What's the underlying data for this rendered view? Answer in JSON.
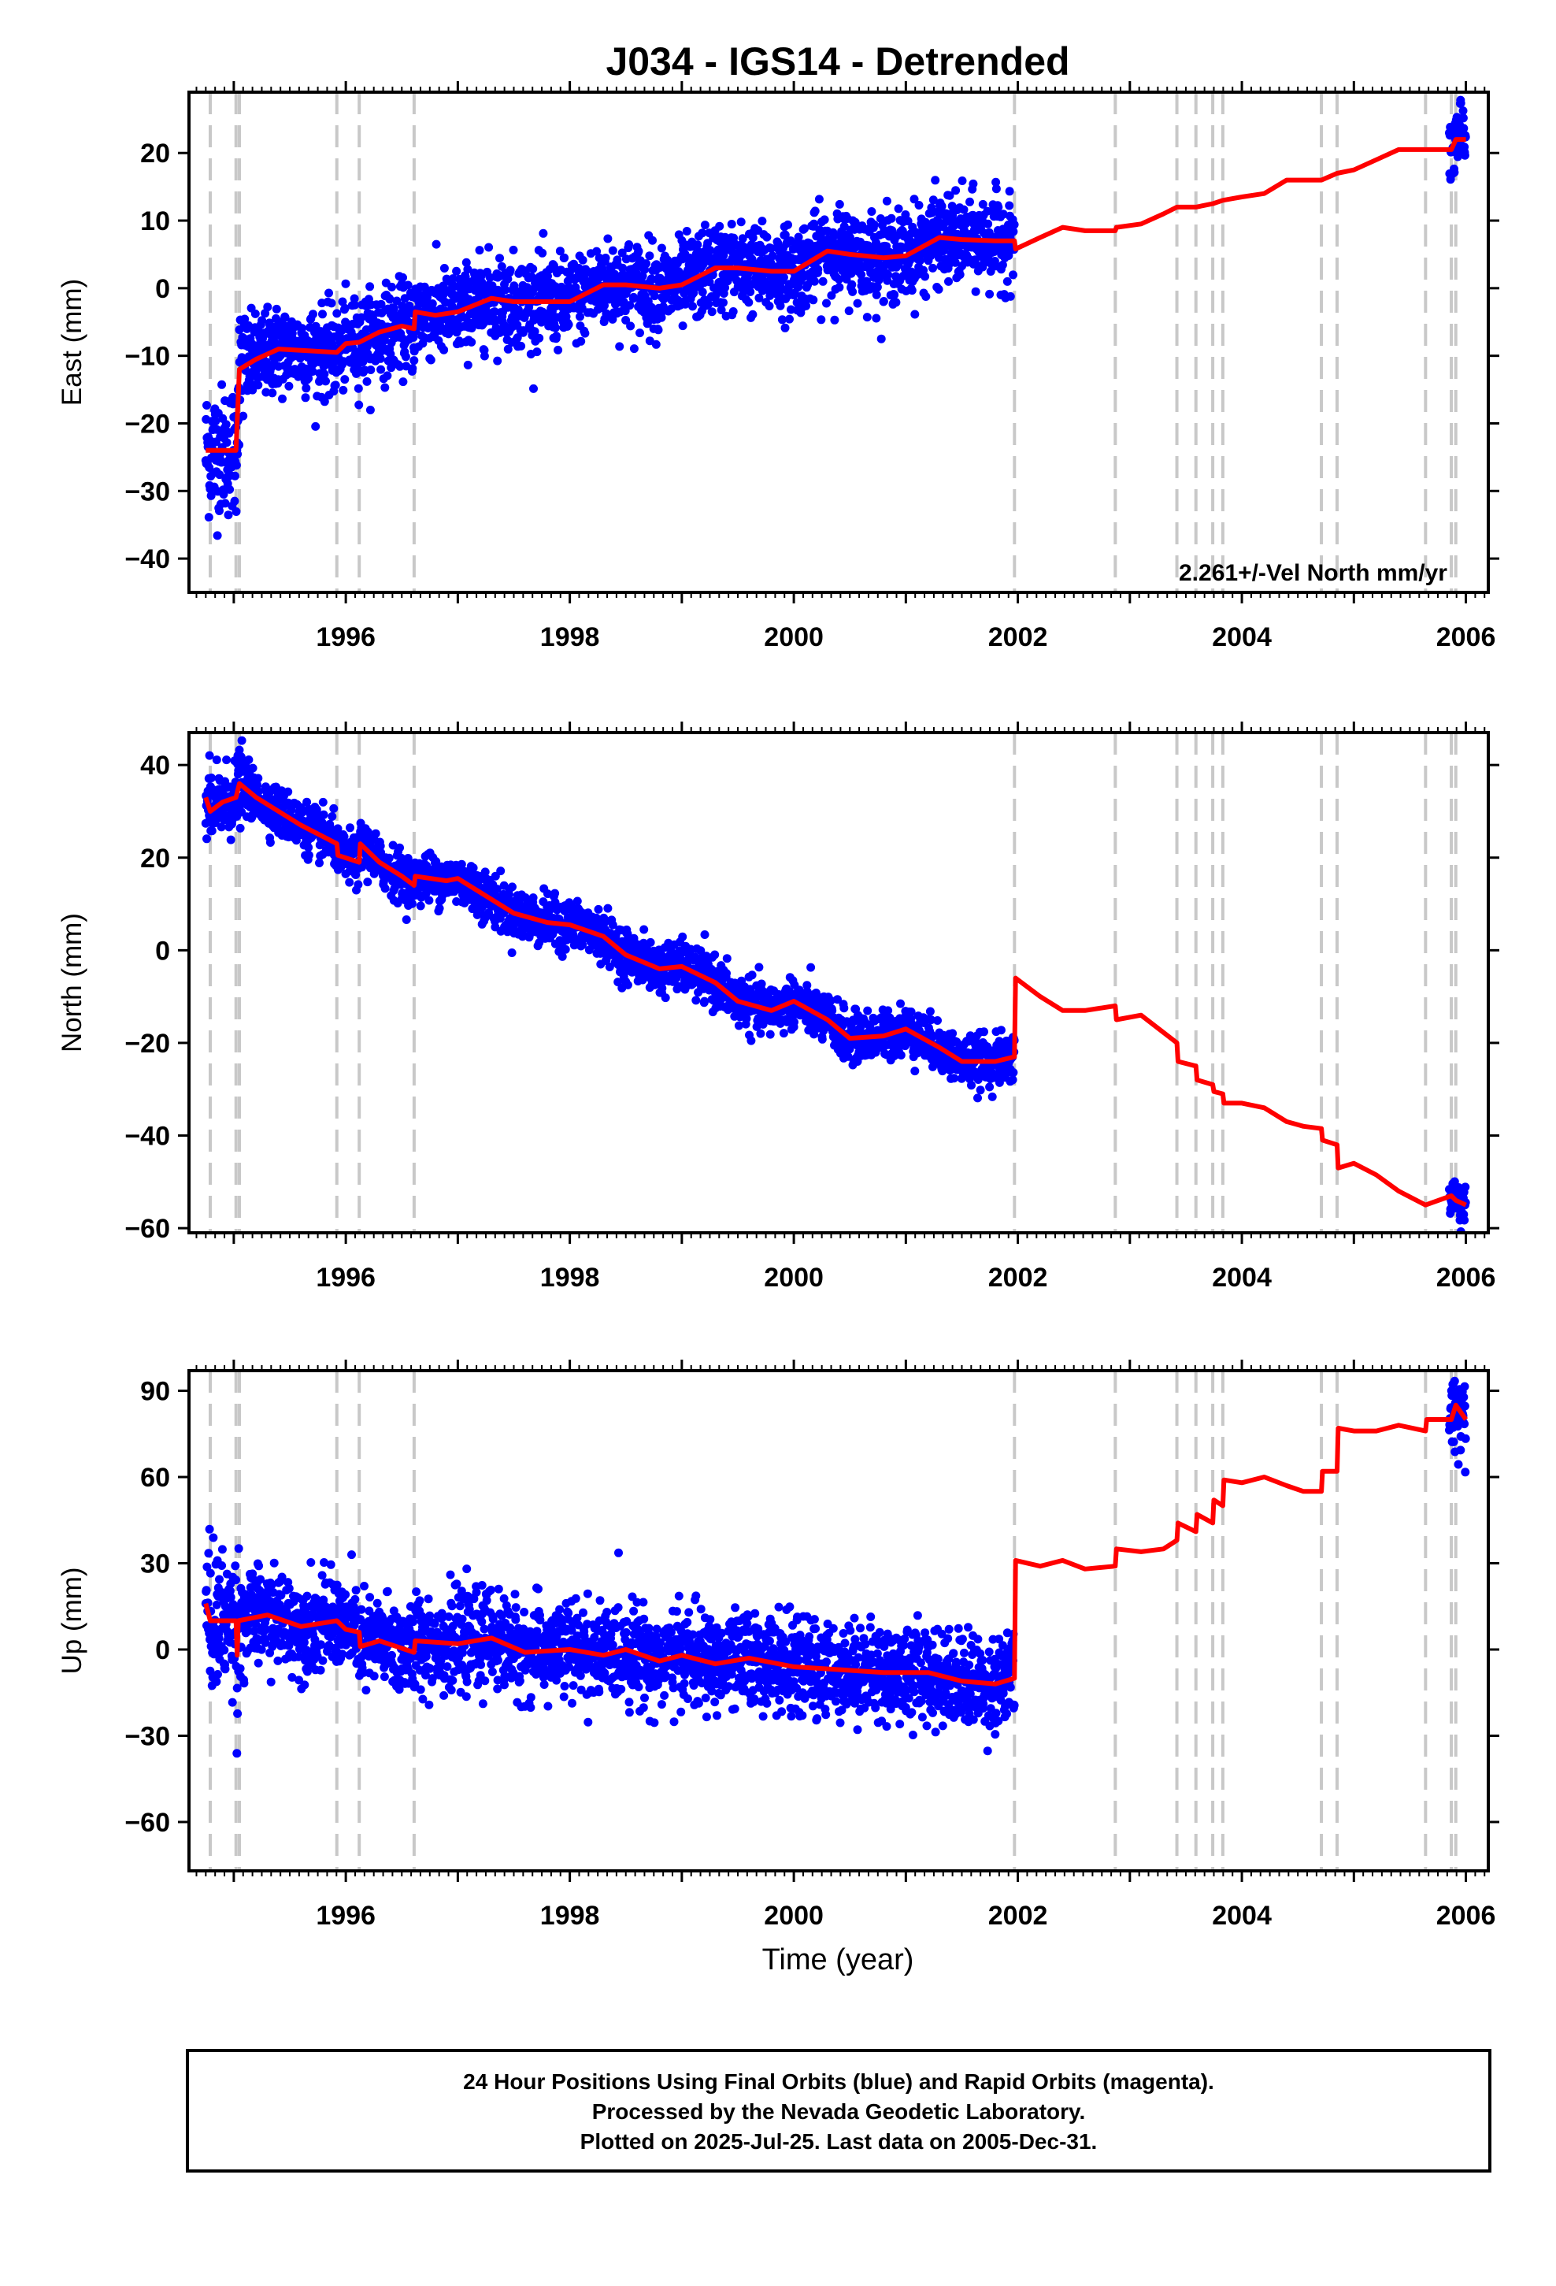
{
  "chart_data": {
    "title": "J034 - IGS14 - Detrended",
    "xlabel": "Time (year)",
    "xlim": [
      1994.6,
      2006.2
    ],
    "x_ticks": [
      1996,
      1998,
      2000,
      2002,
      2004,
      2006
    ],
    "x_tick_labels": [
      "1996",
      "1998",
      "2000",
      "2002",
      "2004",
      "2006"
    ],
    "data_range": [
      1994.75,
      2006.0
    ],
    "colors": {
      "positions": "#0000ff",
      "model": "#ff0000",
      "breaks": "#c8c8c8"
    },
    "breaks": [
      1994.79,
      1995.02,
      1995.05,
      1995.92,
      1996.12,
      1996.61,
      2001.97,
      2002.87,
      2003.42,
      2003.59,
      2003.74,
      2003.83,
      2004.71,
      2004.85,
      2005.64,
      2005.87,
      2005.91
    ],
    "panels": [
      {
        "type": "scatter",
        "component": "east",
        "ylabel": "East (mm)",
        "ylim": [
          -45,
          29
        ],
        "y_ticks": [
          20,
          10,
          0,
          -10,
          -20,
          -30,
          -40
        ],
        "y_tick_labels": [
          "20",
          "10",
          "0",
          "−10",
          "−20",
          "−30",
          "−40"
        ],
        "annotation": "2.261+/-Vel North mm/yr",
        "scatter_sd": 3.2,
        "model": [
          [
            1994.75,
            -24
          ],
          [
            1994.79,
            -24
          ],
          [
            1994.8,
            -24
          ],
          [
            1995.02,
            -24
          ],
          [
            1995.05,
            -12
          ],
          [
            1995.2,
            -10.5
          ],
          [
            1995.4,
            -9
          ],
          [
            1995.6,
            -9.2
          ],
          [
            1995.92,
            -9.5
          ],
          [
            1996.0,
            -8.2
          ],
          [
            1996.12,
            -8
          ],
          [
            1996.3,
            -6.5
          ],
          [
            1996.5,
            -5.6
          ],
          [
            1996.61,
            -6
          ],
          [
            1996.62,
            -3.5
          ],
          [
            1996.8,
            -4
          ],
          [
            1997.0,
            -3.5
          ],
          [
            1997.3,
            -1.5
          ],
          [
            1997.5,
            -2
          ],
          [
            1997.8,
            -2
          ],
          [
            1998.0,
            -2
          ],
          [
            1998.3,
            0.5
          ],
          [
            1998.5,
            0.5
          ],
          [
            1998.8,
            0
          ],
          [
            1999.0,
            0.5
          ],
          [
            1999.3,
            3
          ],
          [
            1999.5,
            3
          ],
          [
            1999.8,
            2.5
          ],
          [
            2000.0,
            2.5
          ],
          [
            2000.3,
            5.5
          ],
          [
            2000.5,
            5
          ],
          [
            2000.8,
            4.5
          ],
          [
            2001.0,
            4.8
          ],
          [
            2001.3,
            7.5
          ],
          [
            2001.5,
            7.2
          ],
          [
            2001.8,
            7
          ],
          [
            2001.97,
            7
          ],
          [
            2001.98,
            5.8
          ],
          [
            2002.2,
            7.5
          ],
          [
            2002.4,
            9
          ],
          [
            2002.6,
            8.5
          ],
          [
            2002.87,
            8.5
          ],
          [
            2002.88,
            9
          ],
          [
            2003.1,
            9.5
          ],
          [
            2003.3,
            11
          ],
          [
            2003.42,
            12
          ],
          [
            2003.59,
            12
          ],
          [
            2003.74,
            12.5
          ],
          [
            2003.83,
            13
          ],
          [
            2004.0,
            13.5
          ],
          [
            2004.2,
            14
          ],
          [
            2004.4,
            16
          ],
          [
            2004.55,
            16
          ],
          [
            2004.71,
            16
          ],
          [
            2004.85,
            17
          ],
          [
            2005.0,
            17.5
          ],
          [
            2005.2,
            19
          ],
          [
            2005.4,
            20.5
          ],
          [
            2005.64,
            20.5
          ],
          [
            2005.87,
            20.5
          ],
          [
            2005.91,
            22
          ],
          [
            2006.0,
            22
          ]
        ]
      },
      {
        "type": "scatter",
        "component": "north",
        "ylabel": "North (mm)",
        "ylim": [
          -61,
          47
        ],
        "y_ticks": [
          40,
          20,
          0,
          -20,
          -40,
          -60
        ],
        "y_tick_labels": [
          "40",
          "20",
          "0",
          "−20",
          "−40",
          "−60"
        ],
        "scatter_sd": 2.6,
        "model": [
          [
            1994.75,
            33
          ],
          [
            1994.79,
            30
          ],
          [
            1994.9,
            32
          ],
          [
            1995.02,
            33
          ],
          [
            1995.05,
            36
          ],
          [
            1995.2,
            33
          ],
          [
            1995.4,
            30
          ],
          [
            1995.6,
            27
          ],
          [
            1995.92,
            23
          ],
          [
            1995.93,
            20.5
          ],
          [
            1996.12,
            19
          ],
          [
            1996.13,
            23
          ],
          [
            1996.3,
            19
          ],
          [
            1996.5,
            16
          ],
          [
            1996.61,
            14
          ],
          [
            1996.62,
            16
          ],
          [
            1996.9,
            15
          ],
          [
            1997.0,
            15.5
          ],
          [
            1997.3,
            11
          ],
          [
            1997.5,
            8
          ],
          [
            1997.8,
            6
          ],
          [
            1998.0,
            5.5
          ],
          [
            1998.3,
            3
          ],
          [
            1998.5,
            -1
          ],
          [
            1998.8,
            -4
          ],
          [
            1999.0,
            -3.5
          ],
          [
            1999.3,
            -7
          ],
          [
            1999.5,
            -11
          ],
          [
            1999.8,
            -13
          ],
          [
            2000.0,
            -11
          ],
          [
            2000.3,
            -15
          ],
          [
            2000.5,
            -19
          ],
          [
            2000.8,
            -18.5
          ],
          [
            2001.0,
            -17
          ],
          [
            2001.3,
            -21
          ],
          [
            2001.5,
            -24
          ],
          [
            2001.8,
            -24
          ],
          [
            2001.97,
            -23
          ],
          [
            2001.98,
            -6
          ],
          [
            2002.2,
            -10
          ],
          [
            2002.4,
            -13
          ],
          [
            2002.6,
            -13
          ],
          [
            2002.87,
            -12
          ],
          [
            2002.88,
            -15
          ],
          [
            2003.1,
            -14
          ],
          [
            2003.42,
            -20
          ],
          [
            2003.43,
            -24
          ],
          [
            2003.59,
            -25
          ],
          [
            2003.6,
            -28
          ],
          [
            2003.74,
            -29
          ],
          [
            2003.75,
            -30.5
          ],
          [
            2003.83,
            -31
          ],
          [
            2003.84,
            -33
          ],
          [
            2004.0,
            -33
          ],
          [
            2004.2,
            -34
          ],
          [
            2004.4,
            -37
          ],
          [
            2004.55,
            -38
          ],
          [
            2004.71,
            -38.5
          ],
          [
            2004.72,
            -41
          ],
          [
            2004.85,
            -42
          ],
          [
            2004.86,
            -47
          ],
          [
            2005.0,
            -46
          ],
          [
            2005.2,
            -48.5
          ],
          [
            2005.4,
            -52
          ],
          [
            2005.64,
            -55
          ],
          [
            2005.87,
            -53
          ],
          [
            2005.91,
            -54
          ],
          [
            2006.0,
            -55
          ]
        ]
      },
      {
        "type": "scatter",
        "component": "up",
        "ylabel": "Up (mm)",
        "ylim": [
          -77,
          97
        ],
        "y_ticks": [
          90,
          60,
          30,
          0,
          -30,
          -60
        ],
        "y_tick_labels": [
          "90",
          "60",
          "30",
          "0",
          "−30",
          "−60"
        ],
        "scatter_sd": 8,
        "model": [
          [
            1994.75,
            16
          ],
          [
            1994.79,
            10
          ],
          [
            1995.02,
            10
          ],
          [
            1995.03,
            -2
          ],
          [
            1995.04,
            10
          ],
          [
            1995.3,
            12
          ],
          [
            1995.6,
            8
          ],
          [
            1995.92,
            10
          ],
          [
            1996.0,
            7
          ],
          [
            1996.12,
            6
          ],
          [
            1996.13,
            1
          ],
          [
            1996.3,
            3
          ],
          [
            1996.61,
            -1
          ],
          [
            1996.62,
            3
          ],
          [
            1997.0,
            2
          ],
          [
            1997.3,
            4
          ],
          [
            1997.6,
            -1
          ],
          [
            1998.0,
            0
          ],
          [
            1998.3,
            -2
          ],
          [
            1998.5,
            0
          ],
          [
            1998.8,
            -4
          ],
          [
            1999.0,
            -2
          ],
          [
            1999.3,
            -5
          ],
          [
            1999.6,
            -3
          ],
          [
            2000.0,
            -6
          ],
          [
            2000.4,
            -7
          ],
          [
            2000.8,
            -8
          ],
          [
            2001.2,
            -8
          ],
          [
            2001.5,
            -11
          ],
          [
            2001.8,
            -12
          ],
          [
            2001.97,
            -10
          ],
          [
            2001.98,
            31
          ],
          [
            2002.2,
            29
          ],
          [
            2002.4,
            31
          ],
          [
            2002.6,
            28
          ],
          [
            2002.87,
            29
          ],
          [
            2002.88,
            35
          ],
          [
            2003.1,
            34
          ],
          [
            2003.3,
            35
          ],
          [
            2003.42,
            38
          ],
          [
            2003.43,
            44
          ],
          [
            2003.59,
            41
          ],
          [
            2003.6,
            47
          ],
          [
            2003.74,
            44
          ],
          [
            2003.75,
            52
          ],
          [
            2003.83,
            50
          ],
          [
            2003.84,
            59
          ],
          [
            2004.0,
            58
          ],
          [
            2004.2,
            60
          ],
          [
            2004.4,
            57
          ],
          [
            2004.55,
            55
          ],
          [
            2004.71,
            55
          ],
          [
            2004.72,
            62
          ],
          [
            2004.85,
            62
          ],
          [
            2004.86,
            77
          ],
          [
            2005.0,
            76
          ],
          [
            2005.2,
            76
          ],
          [
            2005.4,
            78
          ],
          [
            2005.64,
            76
          ],
          [
            2005.65,
            80
          ],
          [
            2005.87,
            80
          ],
          [
            2005.91,
            85
          ],
          [
            2006.0,
            80
          ]
        ]
      }
    ]
  },
  "footer": {
    "lines": [
      "24 Hour Positions Using Final Orbits (blue) and Rapid Orbits (magenta).",
      "Processed by the Nevada Geodetic Laboratory.",
      "Plotted on 2025-Jul-25. Last data on 2005-Dec-31."
    ]
  }
}
